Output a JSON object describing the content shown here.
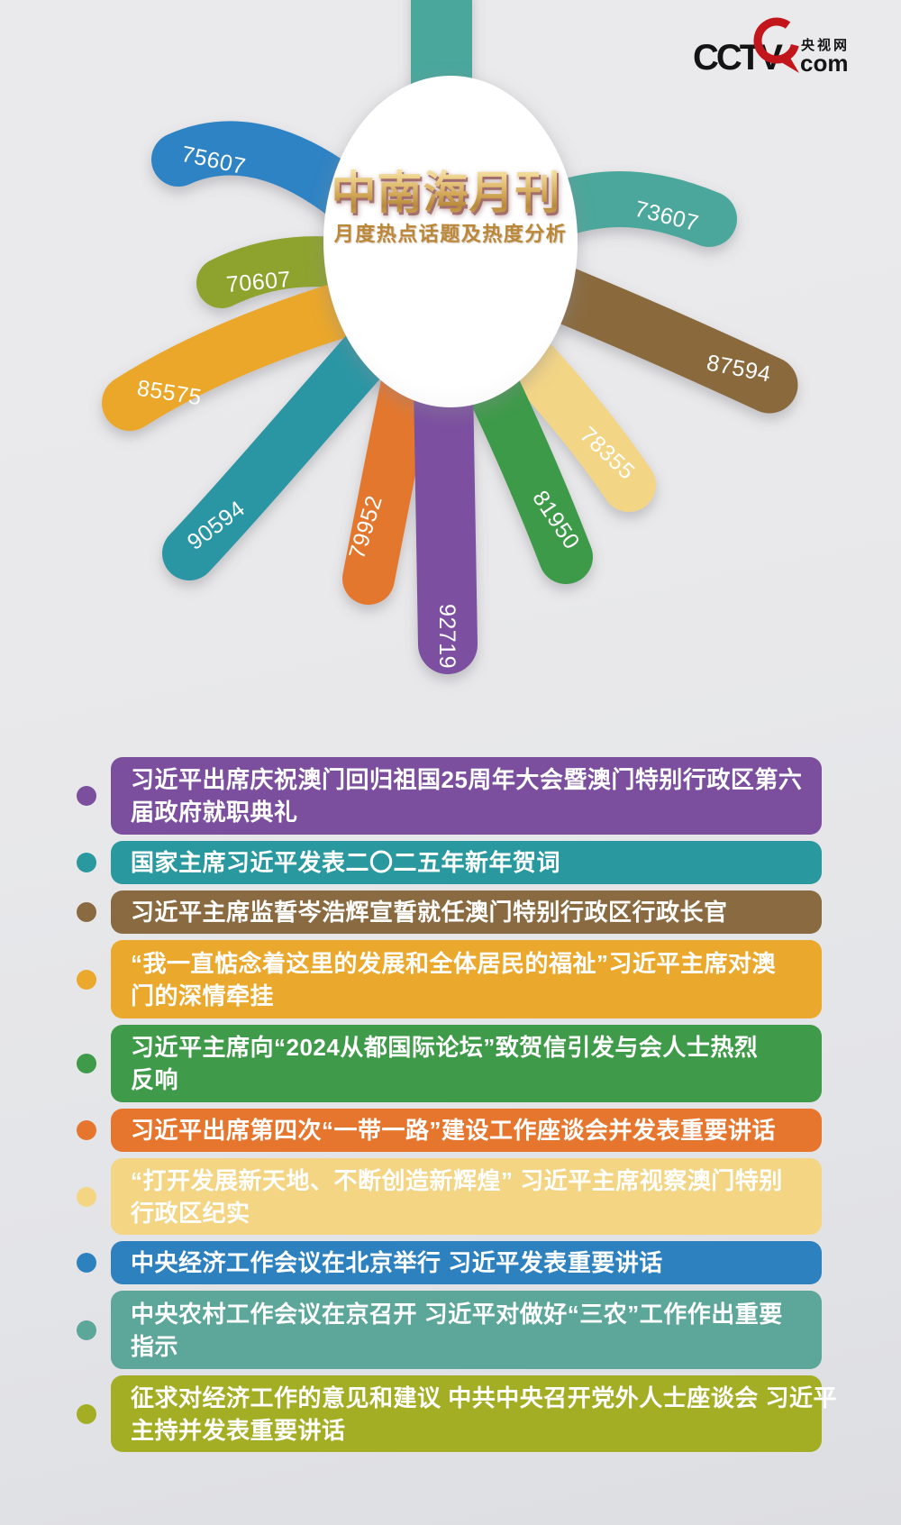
{
  "logo": {
    "brand": "CCTV",
    "site_cn": "央视网",
    "site_suffix": "com"
  },
  "flower": {
    "title": "中南海月刊",
    "subtitle": "月度热点话题及热度分析",
    "top_petal_color": "#4aa79c"
  },
  "chart_data": {
    "type": "bar",
    "variant": "radial-petal-flower-infographic",
    "title": "中南海月刊",
    "subtitle": "月度热点话题及热度分析",
    "value_label": "热度",
    "legend_position": "none",
    "categories": [
      "习近平出席庆祝澳门回归祖国25周年大会暨澳门特别行政区第六届政府就职典礼",
      "国家主席习近平发表二〇二五年新年贺词",
      "习近平主席监誓岑浩辉宣誓就任澳门特别行政区行政长官",
      "“我一直惦念着这里的发展和全体居民的福祉”习近平主席对澳门的深情牵挂",
      "习近平主席向“2024从都国际论坛”致贺信引发与会人士热烈反响",
      "习近平出席第四次“一带一路”建设工作座谈会并发表重要讲话",
      "“打开发展新天地、不断创造新辉煌” 习近平主席视察澳门特别行政区纪实",
      "中央经济工作会议在北京举行 习近平发表重要讲话",
      "中央农村工作会议在京召开 习近平对做好“三农”工作作出重要指示",
      "征求对经济工作的意见和建议 中共中央召开党外人士座谈会 习近平主持并发表重要讲话"
    ],
    "values": [
      92719,
      90594,
      87594,
      85575,
      81950,
      79952,
      78355,
      75607,
      73607,
      70607
    ],
    "colors": [
      "#7b4fa0",
      "#2b96a4",
      "#8a6a3e",
      "#eaa72c",
      "#3d9a48",
      "#e4772f",
      "#f3d586",
      "#2d83c4",
      "#4ca79b",
      "#8da32e"
    ]
  },
  "items": [
    {
      "value": "92719",
      "petal_color": "#7b4fa0",
      "bar_color": "#7c4f9e",
      "topic": "习近平出席庆祝澳门回归祖国25周年大会暨澳门特别行政区第六届政府就职典礼",
      "lines": [
        "习近平出席庆祝澳门回归祖国25周年大会暨澳门特别行政区第六",
        "届政府就职典礼"
      ]
    },
    {
      "value": "90594",
      "petal_color": "#2b96a4",
      "bar_color": "#29999f",
      "topic": "国家主席习近平发表二〇二五年新年贺词",
      "lines": [
        "国家主席习近平发表二〇二五年新年贺词"
      ]
    },
    {
      "value": "87594",
      "petal_color": "#8a6a3e",
      "bar_color": "#8a6a41",
      "topic": "习近平主席监誓岑浩辉宣誓就任澳门特别行政区行政长官",
      "lines": [
        "习近平主席监誓岑浩辉宣誓就任澳门特别行政区行政长官"
      ]
    },
    {
      "value": "85575",
      "petal_color": "#eaa72c",
      "bar_color": "#eaa92d",
      "topic": "“我一直惦念着这里的发展和全体居民的福祉”习近平主席对澳门的深情牵挂",
      "lines": [
        "“我一直惦念着这里的发展和全体居民的福祉”习近平主席对澳",
        "门的深情牵挂"
      ]
    },
    {
      "value": "81950",
      "petal_color": "#3d9a48",
      "bar_color": "#3f9b49",
      "topic": "习近平主席向“2024从都国际论坛”致贺信引发与会人士热烈反响",
      "lines": [
        "习近平主席向“2024从都国际论坛”致贺信引发与会人士热烈",
        "反响"
      ]
    },
    {
      "value": "79952",
      "petal_color": "#e4772f",
      "bar_color": "#e6762e",
      "topic": "习近平出席第四次“一带一路”建设工作座谈会并发表重要讲话",
      "lines": [
        "习近平出席第四次“一带一路”建设工作座谈会并发表重要讲话"
      ]
    },
    {
      "value": "78355",
      "petal_color": "#f3d586",
      "bar_color": "#f4d584",
      "topic": "“打开发展新天地、不断创造新辉煌” 习近平主席视察澳门特别行政区纪实",
      "lines": [
        "“打开发展新天地、不断创造新辉煌” 习近平主席视察澳门特别",
        "行政区纪实"
      ]
    },
    {
      "value": "75607",
      "petal_color": "#2d83c4",
      "bar_color": "#2e81bf",
      "topic": "中央经济工作会议在北京举行 习近平发表重要讲话",
      "lines": [
        "中央经济工作会议在北京举行 习近平发表重要讲话"
      ]
    },
    {
      "value": "73607",
      "petal_color": "#4ca79b",
      "bar_color": "#5da69a",
      "topic": "中央农村工作会议在京召开 习近平对做好“三农”工作作出重要指示",
      "lines": [
        "中央农村工作会议在京召开 习近平对做好“三农”工作作出重要",
        "指示"
      ]
    },
    {
      "value": "70607",
      "petal_color": "#8da32e",
      "bar_color": "#a4ae25",
      "topic": "征求对经济工作的意见和建议 中共中央召开党外人士座谈会 习近平主持并发表重要讲话",
      "lines": [
        "征求对经济工作的意见和建议 中共中央召开党外人士座谈会 习近平",
        "主持并发表重要讲话"
      ]
    }
  ]
}
